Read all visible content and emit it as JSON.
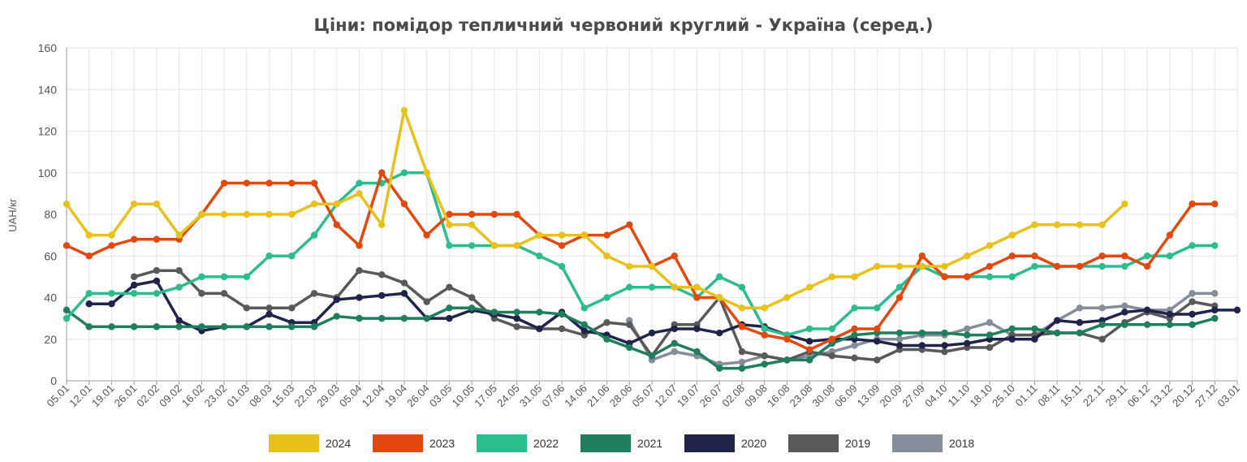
{
  "chart_data": {
    "type": "line",
    "title": "Ціни: помідор тепличний червоний круглий - Україна (серед.)",
    "ylabel": "UAH/кг",
    "xlabel": "",
    "ylim": [
      0,
      160
    ],
    "yticks": [
      0,
      20,
      40,
      60,
      80,
      100,
      120,
      140,
      160
    ],
    "grid": true,
    "legend_position": "bottom",
    "categories": [
      "05.01",
      "12.01",
      "19.01",
      "26.01",
      "02.02",
      "09.02",
      "16.02",
      "23.02",
      "01.03",
      "08.03",
      "15.03",
      "22.03",
      "29.03",
      "05.04",
      "12.04",
      "19.04",
      "26.04",
      "03.05",
      "10.05",
      "17.05",
      "24.05",
      "31.05",
      "07.06",
      "14.06",
      "21.06",
      "28.06",
      "05.07",
      "12.07",
      "19.07",
      "26.07",
      "02.08",
      "09.08",
      "16.08",
      "23.08",
      "30.08",
      "06.09",
      "13.09",
      "20.09",
      "27.09",
      "04.10",
      "11.10",
      "18.10",
      "25.10",
      "01.11",
      "08.11",
      "15.11",
      "22.11",
      "29.11",
      "06.12",
      "13.12",
      "20.12",
      "27.12",
      "03.01"
    ],
    "series": [
      {
        "name": "2024",
        "color": "#e8c11a",
        "values": [
          85,
          70,
          70,
          85,
          85,
          70,
          80,
          80,
          80,
          80,
          80,
          85,
          85,
          90,
          75,
          130,
          100,
          75,
          75,
          65,
          65,
          70,
          70,
          70,
          60,
          55,
          55,
          45,
          45,
          40,
          35,
          35,
          40,
          45,
          50,
          50,
          55,
          55,
          55,
          55,
          60,
          65,
          70,
          75,
          75,
          75,
          75,
          85,
          null,
          null,
          null,
          null,
          null
        ]
      },
      {
        "name": "2023",
        "color": "#e3490f",
        "values": [
          65,
          60,
          65,
          68,
          68,
          68,
          80,
          95,
          95,
          95,
          95,
          95,
          75,
          65,
          100,
          85,
          70,
          80,
          80,
          80,
          80,
          70,
          65,
          70,
          70,
          75,
          55,
          60,
          40,
          40,
          26,
          22,
          20,
          15,
          20,
          25,
          25,
          40,
          60,
          50,
          50,
          55,
          60,
          60,
          55,
          55,
          60,
          60,
          55,
          70,
          85,
          85,
          null
        ]
      },
      {
        "name": "2022",
        "color": "#2bbd8d",
        "values": [
          30,
          42,
          42,
          42,
          42,
          45,
          50,
          50,
          50,
          60,
          60,
          70,
          85,
          95,
          95,
          100,
          100,
          65,
          65,
          65,
          65,
          60,
          55,
          35,
          40,
          45,
          45,
          45,
          40,
          50,
          45,
          25,
          22,
          25,
          25,
          35,
          35,
          45,
          55,
          50,
          50,
          50,
          50,
          55,
          55,
          55,
          55,
          55,
          60,
          60,
          65,
          65,
          null
        ]
      },
      {
        "name": "2021",
        "color": "#1f7f5c",
        "values": [
          34,
          26,
          26,
          26,
          26,
          26,
          26,
          26,
          26,
          26,
          26,
          26,
          31,
          30,
          30,
          30,
          30,
          35,
          35,
          33,
          33,
          33,
          32,
          27,
          20,
          16,
          12,
          18,
          14,
          6,
          6,
          8,
          10,
          10,
          18,
          22,
          23,
          23,
          23,
          23,
          22,
          22,
          25,
          25,
          23,
          23,
          27,
          27,
          27,
          27,
          27,
          30,
          null
        ]
      },
      {
        "name": "2020",
        "color": "#20234a",
        "values": [
          null,
          37,
          37,
          46,
          48,
          29,
          24,
          26,
          26,
          32,
          28,
          28,
          39,
          40,
          41,
          42,
          30,
          30,
          34,
          32,
          30,
          25,
          33,
          24,
          22,
          18,
          23,
          25,
          25,
          23,
          27,
          26,
          22,
          19,
          20,
          20,
          19,
          17,
          17,
          17,
          18,
          20,
          20,
          20,
          29,
          28,
          29,
          33,
          34,
          32,
          32,
          34,
          34
        ]
      },
      {
        "name": "2019",
        "color": "#595959",
        "values": [
          null,
          null,
          null,
          50,
          53,
          53,
          42,
          42,
          35,
          35,
          35,
          42,
          40,
          53,
          51,
          47,
          38,
          45,
          40,
          30,
          26,
          25,
          25,
          22,
          28,
          27,
          12,
          27,
          27,
          40,
          14,
          12,
          10,
          14,
          12,
          11,
          10,
          15,
          15,
          14,
          16,
          16,
          22,
          22,
          23,
          23,
          20,
          28,
          33,
          30,
          38,
          36,
          null
        ]
      },
      {
        "name": "2018",
        "color": "#858c9a",
        "values": [
          null,
          null,
          null,
          null,
          null,
          null,
          null,
          null,
          null,
          null,
          null,
          null,
          null,
          null,
          null,
          null,
          null,
          null,
          null,
          null,
          null,
          null,
          null,
          null,
          null,
          29,
          10,
          14,
          12,
          8,
          9,
          12,
          10,
          12,
          14,
          17,
          20,
          20,
          22,
          22,
          25,
          28,
          22,
          22,
          29,
          35,
          35,
          36,
          34,
          34,
          42,
          42,
          null
        ]
      }
    ]
  }
}
